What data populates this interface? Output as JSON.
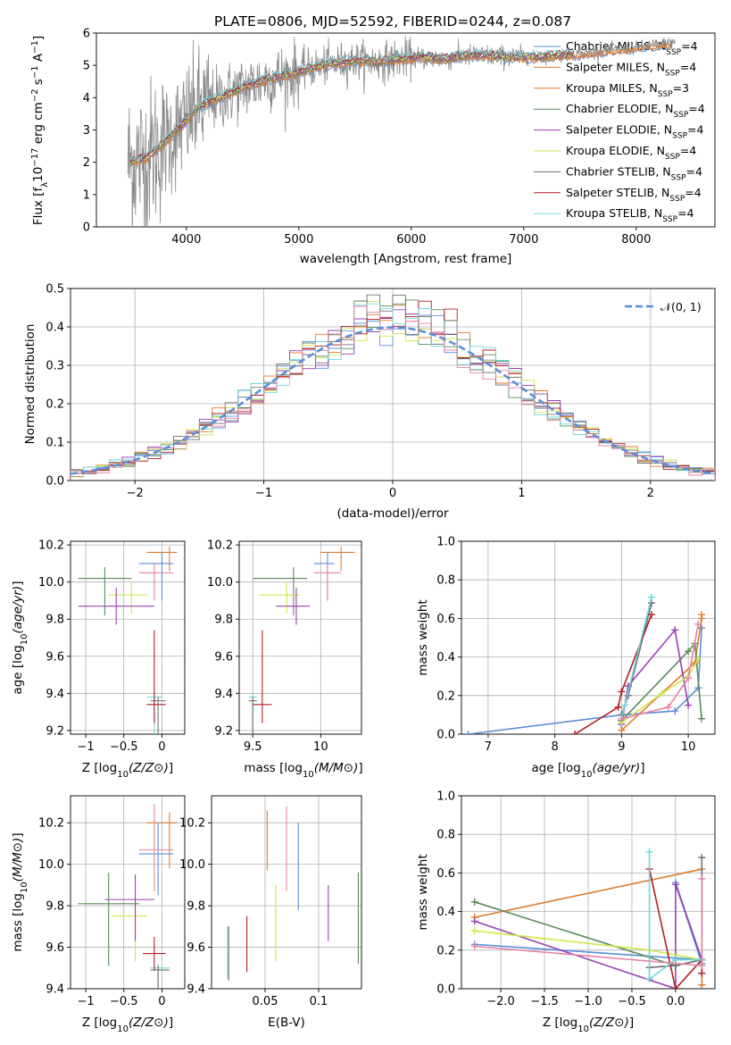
{
  "figure": {
    "title": "PLATE=0806, MJD=52592, FIBERID=0244, z=0.087"
  },
  "colors": {
    "Chabrier MILES": "#5b8fd9",
    "Salpeter MILES": "#e07a2a",
    "Kroupa MILES": "#e07a2a",
    "Chabrier ELODIE": "#5a8a5a",
    "Salpeter ELODIE": "#9a3fb5",
    "Kroupa ELODIE": "#cfe84a",
    "Chabrier STELIB": "#707070",
    "Salpeter STELIB": "#b01d25",
    "Kroupa STELIB": "#72d6dc",
    "Pink": "#e583a8",
    "Normal": "#5b8fd9"
  },
  "chart_data": [
    {
      "id": "spectrum",
      "type": "line",
      "xlabel": "wavelength [Angstrom, rest frame]",
      "ylabel_parts": [
        "Flux [f",
        "λ",
        "10",
        "−17",
        " erg cm",
        "−2",
        " s",
        "−1",
        " A",
        "−1",
        "]"
      ],
      "xlim": [
        3200,
        8700
      ],
      "ylim": [
        0,
        6
      ],
      "xticks": [
        4000,
        5000,
        6000,
        7000,
        8000
      ],
      "yticks": [
        0,
        1,
        2,
        3,
        4,
        5,
        6
      ],
      "legend_position": "right",
      "legend": [
        {
          "name": "Chabrier MILES",
          "n": "4",
          "color": "#5b8fd9"
        },
        {
          "name": "Salpeter MILES",
          "n": "4",
          "color": "#e07a2a"
        },
        {
          "name": "Kroupa MILES",
          "n": "3",
          "color": "#e07a2a"
        },
        {
          "name": "Chabrier ELODIE",
          "n": "4",
          "color": "#5a8a5a"
        },
        {
          "name": "Salpeter ELODIE",
          "n": "4",
          "color": "#9a3fb5"
        },
        {
          "name": "Kroupa ELODIE",
          "n": "4",
          "color": "#cfe84a"
        },
        {
          "name": "Chabrier STELIB",
          "n": "4",
          "color": "#707070"
        },
        {
          "name": "Salpeter STELIB",
          "n": "4",
          "color": "#b01d25"
        },
        {
          "name": "Kroupa STELIB",
          "n": "4",
          "color": "#72d6dc"
        }
      ],
      "legend_n_label": "N",
      "legend_n_sub": "SSP",
      "continuum": {
        "x": [
          3500,
          3650,
          3800,
          3950,
          4100,
          4300,
          4500,
          4700,
          4900,
          5100,
          5300,
          5500,
          5700,
          5900,
          6100,
          6300,
          6500,
          6700,
          6900,
          7100,
          7300,
          7500,
          7700,
          7900,
          8100,
          8300
        ],
        "y": [
          2.0,
          2.15,
          2.6,
          3.1,
          3.7,
          4.0,
          4.3,
          4.55,
          4.7,
          4.9,
          5.05,
          5.15,
          5.1,
          5.2,
          5.25,
          5.2,
          5.3,
          5.3,
          5.25,
          5.25,
          5.3,
          5.35,
          5.45,
          5.5,
          5.6,
          5.7
        ]
      },
      "data_range": [
        3480,
        8350
      ],
      "model_range": [
        3500,
        7450
      ]
    },
    {
      "id": "residuals",
      "type": "histogram",
      "xlabel": "(data-model)/error",
      "ylabel": "Normed distribution",
      "xlim": [
        -2.5,
        2.5
      ],
      "ylim": [
        0,
        0.5
      ],
      "xticks": [
        -2,
        -1,
        0,
        1,
        2
      ],
      "yticks": [
        0.0,
        0.1,
        0.2,
        0.3,
        0.4,
        0.5
      ],
      "bin_width": 0.1,
      "legend": [
        {
          "name": "N(0,1)",
          "style": "dashed",
          "color": "#5b8fd9"
        }
      ],
      "legend_label": "𝒩(0, 1)",
      "legend_position": "top-right",
      "series_colors": [
        "#5b8fd9",
        "#e07a2a",
        "#5a8a5a",
        "#9a3fb5",
        "#cfe84a",
        "#707070",
        "#b01d25",
        "#72d6dc",
        "#e583a8"
      ]
    },
    {
      "id": "age-vs-Z",
      "type": "errorbar",
      "xlabel": "Z [log10(Z/Z⊙)]",
      "ylabel": "age [log10(age/yr)]",
      "xlim": [
        -1.2,
        0.3
      ],
      "ylim": [
        9.18,
        10.22
      ],
      "xticks": [
        -1.0,
        -0.5,
        0.0
      ],
      "yticks": [
        9.2,
        9.4,
        9.6,
        9.8,
        10.0,
        10.2
      ],
      "points": [
        {
          "x": 0.1,
          "xerr": [
            0.3,
            0.1
          ],
          "y": 10.16,
          "yerr": [
            0.1,
            0.03
          ],
          "color": "#e07a2a"
        },
        {
          "x": 0.0,
          "xerr": [
            0.3,
            0.15
          ],
          "y": 10.1,
          "yerr": [
            0.2,
            0.06
          ],
          "color": "#5b8fd9"
        },
        {
          "x": -0.1,
          "xerr": [
            0.2,
            0.25
          ],
          "y": 10.05,
          "yerr": [
            0.15,
            0.05
          ],
          "color": "#e583a8"
        },
        {
          "x": -0.75,
          "xerr": [
            0.35,
            0.35
          ],
          "y": 10.02,
          "yerr": [
            0.2,
            0.06
          ],
          "color": "#5a8a5a"
        },
        {
          "x": -0.4,
          "xerr": [
            0.3,
            0.2
          ],
          "y": 9.93,
          "yerr": [
            0.1,
            0.07
          ],
          "color": "#cfe84a"
        },
        {
          "x": -0.6,
          "xerr": [
            0.5,
            0.5
          ],
          "y": 9.87,
          "yerr": [
            0.1,
            0.1
          ],
          "color": "#9a3fb5"
        },
        {
          "x": -0.1,
          "xerr": [
            0.1,
            0.1
          ],
          "y": 9.38,
          "yerr": [
            0.55,
            0.02
          ],
          "color": "#72d6dc"
        },
        {
          "x": -0.05,
          "xerr": [
            0.1,
            0.1
          ],
          "y": 9.36,
          "yerr": [
            0.55,
            0.02
          ],
          "color": "#707070"
        },
        {
          "x": -0.1,
          "xerr": [
            0.1,
            0.15
          ],
          "y": 9.34,
          "yerr": [
            0.1,
            0.4
          ],
          "color": "#b01d25"
        }
      ]
    },
    {
      "id": "age-vs-mass",
      "type": "errorbar",
      "xlabel": "mass [log10(M/M⊙)]",
      "xlim": [
        9.4,
        10.3
      ],
      "ylim": [
        9.18,
        10.22
      ],
      "xticks": [
        9.5,
        10.0
      ],
      "yticks": [
        9.2,
        9.4,
        9.6,
        9.8,
        10.0,
        10.2
      ],
      "points": [
        {
          "x": 10.15,
          "xerr": [
            0.15,
            0.1
          ],
          "y": 10.16,
          "yerr": [
            0.1,
            0.03
          ],
          "color": "#e07a2a"
        },
        {
          "x": 10.05,
          "xerr": [
            0.1,
            0.05
          ],
          "y": 10.1,
          "yerr": [
            0.2,
            0.06
          ],
          "color": "#5b8fd9"
        },
        {
          "x": 10.05,
          "xerr": [
            0.1,
            0.1
          ],
          "y": 10.05,
          "yerr": [
            0.15,
            0.05
          ],
          "color": "#e583a8"
        },
        {
          "x": 9.8,
          "xerr": [
            0.3,
            0.1
          ],
          "y": 10.02,
          "yerr": [
            0.2,
            0.06
          ],
          "color": "#5a8a5a"
        },
        {
          "x": 9.75,
          "xerr": [
            0.2,
            0.1
          ],
          "y": 9.93,
          "yerr": [
            0.1,
            0.07
          ],
          "color": "#cfe84a"
        },
        {
          "x": 9.82,
          "xerr": [
            0.15,
            0.1
          ],
          "y": 9.87,
          "yerr": [
            0.1,
            0.1
          ],
          "color": "#9a3fb5"
        },
        {
          "x": 9.5,
          "xerr": [
            0.03,
            0.03
          ],
          "y": 9.38,
          "yerr": [
            0.55,
            0.02
          ],
          "color": "#72d6dc"
        },
        {
          "x": 9.5,
          "xerr": [
            0.03,
            0.03
          ],
          "y": 9.36,
          "yerr": [
            0.55,
            0.02
          ],
          "color": "#707070"
        },
        {
          "x": 9.57,
          "xerr": [
            0.07,
            0.07
          ],
          "y": 9.34,
          "yerr": [
            0.1,
            0.4
          ],
          "color": "#b01d25"
        }
      ]
    },
    {
      "id": "weight-vs-age",
      "type": "line",
      "xlabel": "age [log10(age/yr)]",
      "ylabel": "mass weight",
      "xlim": [
        6.6,
        10.4
      ],
      "ylim": [
        0,
        1
      ],
      "xticks": [
        7,
        8,
        9,
        10
      ],
      "yticks": [
        0.0,
        0.2,
        0.4,
        0.6,
        0.8,
        1.0
      ],
      "series": [
        {
          "color": "#5b8fd9",
          "x": [
            6.7,
            9.0,
            9.8,
            10.15,
            10.2
          ],
          "y": [
            0.0,
            0.1,
            0.12,
            0.24,
            0.55
          ]
        },
        {
          "color": "#e07a2a",
          "x": [
            9.0,
            10.1,
            10.2,
            10.2
          ],
          "y": [
            0.02,
            0.37,
            0.6,
            0.62
          ]
        },
        {
          "color": "#5a8a5a",
          "x": [
            9.0,
            10.0,
            10.1,
            10.2
          ],
          "y": [
            0.07,
            0.43,
            0.47,
            0.08
          ]
        },
        {
          "color": "#9a3fb5",
          "x": [
            9.0,
            9.1,
            9.8,
            10.0
          ],
          "y": [
            0.05,
            0.25,
            0.54,
            0.15
          ]
        },
        {
          "color": "#cfe84a",
          "x": [
            9.0,
            9.6,
            10.0,
            10.15
          ],
          "y": [
            0.06,
            0.21,
            0.3,
            0.39
          ]
        },
        {
          "color": "#707070",
          "x": [
            9.0,
            9.1,
            9.45
          ],
          "y": [
            0.1,
            0.2,
            0.68
          ]
        },
        {
          "color": "#b01d25",
          "x": [
            8.3,
            8.95,
            9.0,
            9.45
          ],
          "y": [
            0.0,
            0.14,
            0.22,
            0.62
          ]
        },
        {
          "color": "#72d6dc",
          "x": [
            9.0,
            9.05,
            9.45
          ],
          "y": [
            0.08,
            0.15,
            0.71
          ]
        },
        {
          "color": "#e583a8",
          "x": [
            9.0,
            9.7,
            10.0,
            10.15
          ],
          "y": [
            0.08,
            0.14,
            0.29,
            0.57
          ]
        }
      ]
    },
    {
      "id": "mass-vs-Z",
      "type": "errorbar",
      "xlabel": "Z [log10(Z/Z⊙)]",
      "ylabel": "mass [log10(M/M⊙)]",
      "xlim": [
        -1.2,
        0.3
      ],
      "ylim": [
        9.4,
        10.33
      ],
      "xticks": [
        -1.0,
        -0.5,
        0.0
      ],
      "yticks": [
        9.4,
        9.6,
        9.8,
        10.0,
        10.2
      ],
      "points": [
        {
          "x": 0.1,
          "xerr": [
            0.3,
            0.1
          ],
          "y": 10.2,
          "yerr": [
            0.22,
            0.05
          ],
          "color": "#e07a2a"
        },
        {
          "x": -0.05,
          "xerr": [
            0.25,
            0.2
          ],
          "y": 10.05,
          "yerr": [
            0.2,
            0.15
          ],
          "color": "#5b8fd9"
        },
        {
          "x": -0.1,
          "xerr": [
            0.2,
            0.25
          ],
          "y": 10.07,
          "yerr": [
            0.2,
            0.22
          ],
          "color": "#e583a8"
        },
        {
          "x": -0.7,
          "xerr": [
            0.4,
            0.4
          ],
          "y": 9.81,
          "yerr": [
            0.3,
            0.15
          ],
          "color": "#5a8a5a"
        },
        {
          "x": -0.35,
          "xerr": [
            0.3,
            0.15
          ],
          "y": 9.75,
          "yerr": [
            0.22,
            0.1
          ],
          "color": "#cfe84a"
        },
        {
          "x": -0.35,
          "xerr": [
            0.4,
            0.25
          ],
          "y": 9.83,
          "yerr": [
            0.2,
            0.12
          ],
          "color": "#9a3fb5"
        },
        {
          "x": -0.05,
          "xerr": [
            0.1,
            0.15
          ],
          "y": 9.5,
          "yerr": [
            0.35,
            0.02
          ],
          "color": "#72d6dc"
        },
        {
          "x": -0.05,
          "xerr": [
            0.1,
            0.15
          ],
          "y": 9.49,
          "yerr": [
            0.35,
            0.02
          ],
          "color": "#707070"
        },
        {
          "x": -0.1,
          "xerr": [
            0.15,
            0.15
          ],
          "y": 9.57,
          "yerr": [
            0.08,
            0.08
          ],
          "color": "#b01d25"
        }
      ]
    },
    {
      "id": "mass-vs-ebv",
      "type": "errorbar",
      "xlabel": "E(B-V)",
      "xlim": [
        0.0,
        0.14
      ],
      "ylim": [
        9.4,
        10.33
      ],
      "xticks": [
        0.05,
        0.1
      ],
      "yticks": [
        9.4,
        9.6,
        9.8,
        10.0,
        10.2
      ],
      "points": [
        {
          "x": 0.015,
          "yerr": [
            9.45,
            9.7
          ],
          "color": "#72d6dc"
        },
        {
          "x": 0.016,
          "yerr": [
            9.44,
            9.7
          ],
          "color": "#707070"
        },
        {
          "x": 0.033,
          "yerr": [
            9.48,
            9.75
          ],
          "color": "#b01d25"
        },
        {
          "x": 0.052,
          "yerr": [
            9.97,
            10.26
          ],
          "color": "#e07a2a"
        },
        {
          "x": 0.06,
          "yerr": [
            9.53,
            9.9
          ],
          "color": "#cfe84a"
        },
        {
          "x": 0.07,
          "yerr": [
            9.87,
            10.28
          ],
          "color": "#e583a8"
        },
        {
          "x": 0.081,
          "yerr": [
            9.78,
            10.2
          ],
          "color": "#5b8fd9"
        },
        {
          "x": 0.109,
          "yerr": [
            9.63,
            9.9
          ],
          "color": "#9a3fb5"
        },
        {
          "x": 0.137,
          "yerr": [
            9.52,
            9.96
          ],
          "color": "#5a8a5a"
        }
      ]
    },
    {
      "id": "weight-vs-Z",
      "type": "line",
      "xlabel": "Z [log10(Z/Z⊙)]",
      "ylabel": "mass weight",
      "xlim": [
        -2.45,
        0.45
      ],
      "ylim": [
        0,
        1
      ],
      "xticks": [
        -2.0,
        -1.5,
        -1.0,
        -0.5,
        0.0
      ],
      "xtick_labels": [
        "−2.0",
        "−1.5",
        "−1.0",
        "−0.5",
        "0.0"
      ],
      "yticks": [
        0.0,
        0.2,
        0.4,
        0.6,
        0.8,
        1.0
      ],
      "series": [
        {
          "color": "#5b8fd9",
          "x": [
            -2.3,
            0.3,
            0.0,
            0.3
          ],
          "y": [
            0.23,
            0.15,
            0.55,
            0.13
          ]
        },
        {
          "color": "#e07a2a",
          "x": [
            -2.3,
            0.3,
            0.3
          ],
          "y": [
            0.37,
            0.62,
            0.02
          ]
        },
        {
          "color": "#5a8a5a",
          "x": [
            -2.3,
            0.0,
            0.3,
            0.3
          ],
          "y": [
            0.45,
            0.12,
            0.15,
            0.08
          ]
        },
        {
          "color": "#9a3fb5",
          "x": [
            -2.3,
            0.0,
            0.0,
            0.3
          ],
          "y": [
            0.35,
            0.0,
            0.54,
            0.15
          ]
        },
        {
          "color": "#cfe84a",
          "x": [
            -2.3,
            -0.3,
            0.3
          ],
          "y": [
            0.3,
            0.2,
            0.15
          ]
        },
        {
          "color": "#707070",
          "x": [
            -0.3,
            0.0,
            0.3,
            0.3
          ],
          "y": [
            0.11,
            0.12,
            0.15,
            0.68
          ]
        },
        {
          "color": "#b01d25",
          "x": [
            -0.3,
            0.0,
            0.3,
            0.3
          ],
          "y": [
            0.62,
            0.0,
            0.15,
            0.08
          ]
        },
        {
          "color": "#72d6dc",
          "x": [
            -0.3,
            -0.3,
            0.0,
            0.3
          ],
          "y": [
            0.71,
            0.05,
            0.15,
            0.15
          ]
        },
        {
          "color": "#e583a8",
          "x": [
            -2.3,
            0.3,
            0.3
          ],
          "y": [
            0.22,
            0.12,
            0.57
          ]
        }
      ]
    }
  ]
}
